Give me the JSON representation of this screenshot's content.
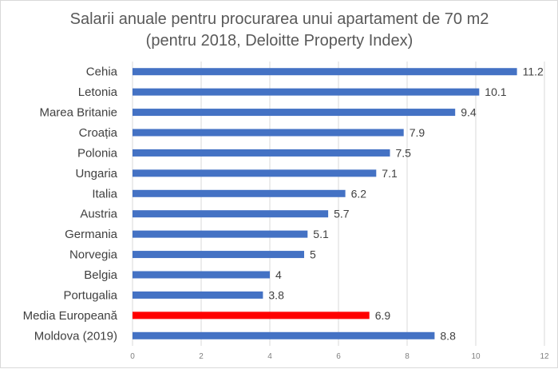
{
  "chart_data": {
    "type": "bar",
    "orientation": "horizontal",
    "title": [
      "Salarii anuale pentru procurarea unui apartament de 70 m2",
      "(pentru 2018, Deloitte Property Index)"
    ],
    "categories": [
      "Cehia",
      "Letonia",
      "Marea Britanie",
      "Croația",
      "Polonia",
      "Ungaria",
      "Italia",
      "Austria",
      "Germania",
      "Norvegia",
      "Belgia",
      "Portugalia",
      "Media Europeană",
      "Moldova (2019)"
    ],
    "values": [
      11.2,
      10.1,
      9.4,
      7.9,
      7.5,
      7.1,
      6.2,
      5.7,
      5.1,
      5,
      4,
      3.8,
      6.9,
      8.8
    ],
    "value_labels": [
      "11.2",
      "10.1",
      "9.4",
      "7.9",
      "7.5",
      "7.1",
      "6.2",
      "5.7",
      "5.1",
      "5",
      "4",
      "3.8",
      "6.9",
      "8.8"
    ],
    "highlight_index": 12,
    "xlim": [
      0,
      12
    ],
    "xticks": [
      "0",
      "2",
      "4",
      "6",
      "8",
      "10",
      "12"
    ],
    "grid": true,
    "legend": "none",
    "colors": {
      "bar": "#4472C4",
      "highlight": "#FF0000",
      "grid": "#D9D9D9"
    }
  }
}
